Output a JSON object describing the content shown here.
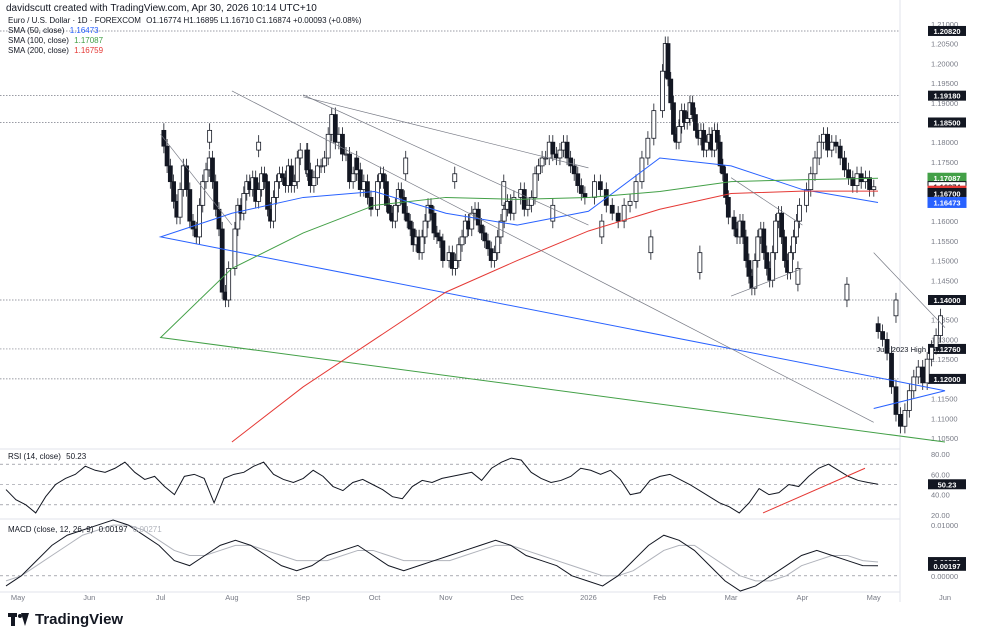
{
  "header": {
    "credit": "davidscutt created with TradingView.com, Apr 30, 2026 10:14 UTC+10",
    "symbol": "Euro / U.S. Dollar · 1D · FOREXCOM",
    "ohlc": "O1.16774 H1.16895 L1.16710 C1.16874 +0.00093 (+0.08%)"
  },
  "legend": {
    "sma50": {
      "label": "SMA (50, close)",
      "value": "1.16473",
      "color": "#2962ff"
    },
    "sma100": {
      "label": "SMA (100, close)",
      "value": "1.17087",
      "color": "#43a047"
    },
    "sma200": {
      "label": "SMA (200, close)",
      "value": "1.16759",
      "color": "#e53935"
    },
    "rsi": {
      "label": "RSI (14, close)",
      "value": "50.23"
    },
    "macd": {
      "label": "MACD (close, 12, 26, 9)",
      "value": "0.00197",
      "signal": "0.00271"
    }
  },
  "brand": {
    "name": "TradingView"
  },
  "chart_data": [
    {
      "type": "candlestick",
      "title": "Euro / U.S. Dollar · 1D · FOREXCOM",
      "x_ticks": [
        "May",
        "Jun",
        "Jul",
        "Aug",
        "Sep",
        "Oct",
        "Nov",
        "Dec",
        "2026",
        "Feb",
        "Mar",
        "Apr",
        "May",
        "Jun"
      ],
      "y_ticks": [
        "1.21000",
        "1.20500",
        "1.20000",
        "1.19500",
        "1.19000",
        "1.18500",
        "1.18000",
        "1.17500",
        "1.17000",
        "1.16500",
        "1.16000",
        "1.15500",
        "1.15000",
        "1.14500",
        "1.14000",
        "1.13500",
        "1.13000",
        "1.12500",
        "1.12000",
        "1.11500",
        "1.11000",
        "1.10500"
      ],
      "ylim": [
        1.1035,
        1.2125
      ],
      "price_path": [
        [
          "May",
          1.132
        ],
        [
          1.13,
          1.1265
        ],
        [
          1.118,
          1.111
        ],
        [
          1.108,
          1.112
        ],
        [
          1.117,
          1.1205
        ],
        [
          1.123,
          1.119
        ],
        [
          1.125,
          1.128
        ],
        [
          1.131,
          1.136
        ],
        [
          "Jun",
          1.14
        ],
        [
          1.144,
          1.148
        ],
        [
          1.147,
          1.152
        ],
        [
          1.156,
          1.16
        ],
        [
          1.164,
          1.17
        ],
        [
          1.172,
          1.176
        ],
        [
          1.172,
          1.178
        ],
        [
          1.18,
          1.183
        ],
        [
          "Jul",
          1.179
        ],
        [
          1.174,
          1.17
        ],
        [
          1.165,
          1.161
        ],
        [
          1.168,
          1.174
        ],
        [
          1.168,
          1.16
        ],
        [
          1.158,
          1.156
        ],
        [
          1.164,
          1.17
        ],
        [
          1.173,
          1.176
        ],
        [
          1.17,
          1.163
        ],
        [
          1.158,
          1.142
        ],
        [
          1.14,
          1.148
        ],
        [
          "Aug",
          1.158
        ],
        [
          1.164,
          1.162
        ],
        [
          1.167,
          1.17
        ],
        [
          1.168,
          1.171
        ],
        [
          1.165,
          1.168
        ],
        [
          1.172,
          1.17
        ],
        [
          1.163,
          1.16
        ],
        [
          1.166,
          1.17
        ],
        [
          1.172,
          1.171
        ],
        [
          1.169,
          1.174
        ],
        [
          1.169,
          1.17
        ],
        [
          1.176,
          1.178
        ],
        [
          "Sep",
          1.173
        ],
        [
          1.169,
          1.171
        ],
        [
          1.174,
          1.174
        ],
        [
          1.176,
          1.182
        ],
        [
          1.187,
          1.18
        ],
        [
          1.182,
          1.177
        ],
        [
          1.177,
          1.17
        ],
        [
          1.172,
          1.173
        ],
        [
          1.168,
          1.17
        ],
        [
          1.166,
          1.163
        ],
        [
          "Oct",
          1.17
        ],
        [
          1.172,
          1.17
        ],
        [
          1.164,
          1.162
        ],
        [
          1.16,
          1.164
        ],
        [
          1.168,
          1.166
        ],
        [
          1.162,
          1.16
        ],
        [
          1.158,
          1.154
        ],
        [
          1.156,
          1.152
        ],
        [
          1.156,
          1.16
        ],
        [
          1.164,
          1.162
        ],
        [
          1.157,
          1.156
        ],
        [
          1.155,
          1.15
        ],
        [
          "Nov",
          1.152
        ],
        [
          1.148,
          1.15
        ],
        [
          1.154,
          1.156
        ],
        [
          1.16,
          1.158
        ],
        [
          1.162,
          1.163
        ],
        [
          1.159,
          1.157
        ],
        [
          1.155,
          1.153
        ],
        [
          1.15,
          1.152
        ],
        [
          1.156,
          1.16
        ],
        [
          1.163,
          1.165
        ],
        [
          1.162,
          1.166
        ],
        [
          "Dec",
          1.168
        ],
        [
          1.163,
          1.164
        ],
        [
          1.166,
          1.172
        ],
        [
          1.174,
          1.176
        ],
        [
          1.176,
          1.18
        ],
        [
          1.177,
          1.176
        ],
        [
          1.178,
          1.18
        ],
        [
          1.176,
          1.174
        ],
        [
          1.172,
          1.169
        ],
        [
          1.167,
          1.166
        ],
        [
          "2026",
          1.17
        ],
        [
          1.168,
          1.164
        ],
        [
          1.162,
          1.16
        ],
        [
          1.164,
          1.165
        ],
        [
          1.17,
          1.176
        ],
        [
          1.181,
          1.188
        ],
        [
          "Feb",
          1.198
        ],
        [
          1.205,
          1.196
        ],
        [
          1.19,
          1.182
        ],
        [
          1.18,
          1.184
        ],
        [
          1.188,
          1.185
        ],
        [
          1.186,
          1.19
        ],
        [
          1.187,
          1.183
        ],
        [
          1.181,
          1.183
        ],
        [
          1.178,
          1.18
        ],
        [
          1.182,
          1.178
        ],
        [
          1.183,
          1.18
        ],
        [
          1.174,
          1.172
        ],
        [
          1.166,
          1.161
        ],
        [
          "Mar",
          1.158
        ],
        [
          1.156,
          1.16
        ],
        [
          1.156,
          1.15
        ],
        [
          1.146,
          1.143
        ],
        [
          1.15,
          1.156
        ],
        [
          1.158,
          1.152
        ],
        [
          1.148,
          1.145
        ],
        [
          1.152,
          1.16
        ],
        [
          1.162,
          1.156
        ],
        [
          1.15,
          1.147
        ],
        [
          1.152,
          1.156
        ],
        [
          1.16,
          1.164
        ],
        [
          "Apr",
          1.168
        ],
        [
          1.172,
          1.176
        ],
        [
          1.18,
          1.182
        ],
        [
          1.178,
          1.18
        ],
        [
          1.179,
          1.176
        ],
        [
          1.173,
          1.171
        ],
        [
          1.169,
          1.172
        ],
        [
          1.17,
          1.171
        ],
        [
          1.168,
          1.1687
        ]
      ],
      "sma": {
        "sma50": [
          [
            "May",
            1.1125
          ],
          [
            "Jun",
            1.117
          ],
          [
            "Jul",
            1.156
          ],
          [
            "Aug",
            1.162
          ],
          [
            "Sep",
            1.166
          ],
          [
            "Oct",
            1.1675
          ],
          [
            "Nov",
            1.162
          ],
          [
            "Dec",
            1.159
          ],
          [
            "2026",
            1.1625
          ],
          [
            "Feb",
            1.176
          ],
          [
            "Mar",
            1.174
          ],
          [
            "Apr",
            1.168
          ],
          [
            "end",
            1.16473
          ]
        ],
        "sma100": [
          [
            "Jun",
            1.104
          ],
          [
            "Jul",
            1.1305
          ],
          [
            "Aug",
            1.148
          ],
          [
            "Sep",
            1.157
          ],
          [
            "Oct",
            1.164
          ],
          [
            "Nov",
            1.166
          ],
          [
            "Dec",
            1.1655
          ],
          [
            "2026",
            1.166
          ],
          [
            "Feb",
            1.1675
          ],
          [
            "Mar",
            1.17
          ],
          [
            "Apr",
            1.1705
          ],
          [
            "end",
            1.17087
          ]
        ],
        "sma200": [
          [
            "Aug",
            1.104
          ],
          [
            "Sep",
            1.118
          ],
          [
            "Oct",
            1.13
          ],
          [
            "Nov",
            1.142
          ],
          [
            "Dec",
            1.15
          ],
          [
            "2026",
            1.1575
          ],
          [
            "Feb",
            1.163
          ],
          [
            "Mar",
            1.167
          ],
          [
            "Apr",
            1.1676
          ],
          [
            "end",
            1.16759
          ]
        ]
      },
      "horizontal_levels": [
        {
          "value": 1.2082,
          "label": "1.20820"
        },
        {
          "value": 1.1918,
          "label": "1.19180"
        },
        {
          "value": 1.185,
          "label": "1.18500"
        },
        {
          "value": 1.14,
          "label": "1.14000"
        },
        {
          "value": 1.1276,
          "label": "1.12760",
          "annotation": "July 2023 High"
        },
        {
          "value": 1.12,
          "label": "1.12000"
        }
      ],
      "price_tags": [
        {
          "value": 1.17087,
          "label": "1.17087",
          "color": "#43a047"
        },
        {
          "value": 1.16874,
          "label": "1.16874",
          "color": "#ffffff"
        },
        {
          "value": 1.16759,
          "label": "1.16759",
          "color": "#e53935"
        },
        {
          "value": 1.167,
          "label": "1.16700",
          "color": "#131722"
        },
        {
          "value": 1.16473,
          "label": "1.16473",
          "color": "#2962ff"
        }
      ],
      "trendlines": [
        {
          "from": [
            "May",
            1.152
          ],
          "to": [
            "Jun",
            1.133
          ]
        },
        {
          "from": [
            "May",
            1.109
          ],
          "to": [
            "Aug",
            1.193
          ]
        },
        {
          "from": [
            "Jul",
            1.182
          ],
          "to": [
            "Aug",
            1.159
          ]
        },
        {
          "from": [
            "Sep",
            1.1915
          ],
          "to": [
            "2026",
            1.1735
          ]
        },
        {
          "from": [
            "Sep",
            1.192
          ],
          "to": [
            "2026",
            1.159
          ]
        },
        {
          "from": [
            "Mar",
            1.171
          ],
          "to": [
            "Apr",
            1.159
          ]
        },
        {
          "from": [
            "Mar",
            1.141
          ],
          "to": [
            "Apr",
            1.148
          ]
        }
      ]
    },
    {
      "type": "line",
      "title": "RSI (14, close)",
      "y_ticks": [
        "80.00",
        "60.00",
        "40.00",
        "20.00"
      ],
      "ylim": [
        18,
        82
      ],
      "guide_levels": [
        70,
        50,
        30
      ],
      "last_value": 50.23,
      "values": [
        45,
        35,
        30,
        22,
        38,
        50,
        56,
        60,
        68,
        64,
        62,
        66,
        72,
        62,
        55,
        58,
        48,
        40,
        58,
        60,
        56,
        32,
        56,
        60,
        62,
        68,
        72,
        60,
        55,
        52,
        56,
        64,
        58,
        48,
        44,
        52,
        55,
        50,
        45,
        38,
        36,
        48,
        54,
        52,
        56,
        58,
        60,
        62,
        54,
        66,
        72,
        76,
        74,
        62,
        56,
        52,
        54,
        58,
        66,
        64,
        60,
        64,
        55,
        40,
        42,
        54,
        58,
        60,
        55,
        50,
        44,
        38,
        32,
        28,
        22,
        32,
        46,
        40,
        42,
        50,
        48,
        58,
        66,
        70,
        64,
        58,
        54,
        52,
        50.23
      ],
      "trendline": {
        "from": 22,
        "to": 66
      }
    },
    {
      "type": "line",
      "title": "MACD (close, 12, 26, 9)",
      "y_ticks": [
        "0.01000",
        "0.00000"
      ],
      "ylim": [
        -0.0028,
        0.0112
      ],
      "last_value": 0.00197,
      "signal_last": 0.00271,
      "macd": [
        -0.002,
        0.0,
        0.003,
        0.006,
        0.008,
        0.009,
        0.01,
        0.011,
        0.01,
        0.008,
        0.006,
        0.003,
        0.002,
        0.004,
        0.006,
        0.007,
        0.006,
        0.004,
        0.002,
        0.001,
        0.002,
        0.004,
        0.005,
        0.006,
        0.004,
        0.002,
        0.001,
        0.002,
        0.003,
        0.004,
        0.005,
        0.006,
        0.007,
        0.006,
        0.004,
        0.003,
        0.002,
        0.0,
        -0.001,
        -0.002,
        0.0,
        0.003,
        0.006,
        0.008,
        0.007,
        0.005,
        0.002,
        -0.001,
        -0.003,
        -0.002,
        0.0,
        0.002,
        0.004,
        0.005,
        0.004,
        0.003,
        0.002,
        0.00197
      ],
      "signal": [
        -0.001,
        0.0,
        0.002,
        0.004,
        0.006,
        0.008,
        0.009,
        0.01,
        0.01,
        0.009,
        0.007,
        0.005,
        0.004,
        0.004,
        0.005,
        0.006,
        0.006,
        0.005,
        0.004,
        0.003,
        0.003,
        0.003,
        0.004,
        0.005,
        0.005,
        0.004,
        0.003,
        0.003,
        0.003,
        0.003,
        0.004,
        0.005,
        0.006,
        0.006,
        0.005,
        0.004,
        0.003,
        0.002,
        0.001,
        0.0,
        0.0,
        0.001,
        0.003,
        0.005,
        0.006,
        0.006,
        0.004,
        0.002,
        0.0,
        -0.001,
        -0.001,
        0.0,
        0.002,
        0.003,
        0.004,
        0.004,
        0.003,
        0.00271
      ]
    }
  ]
}
